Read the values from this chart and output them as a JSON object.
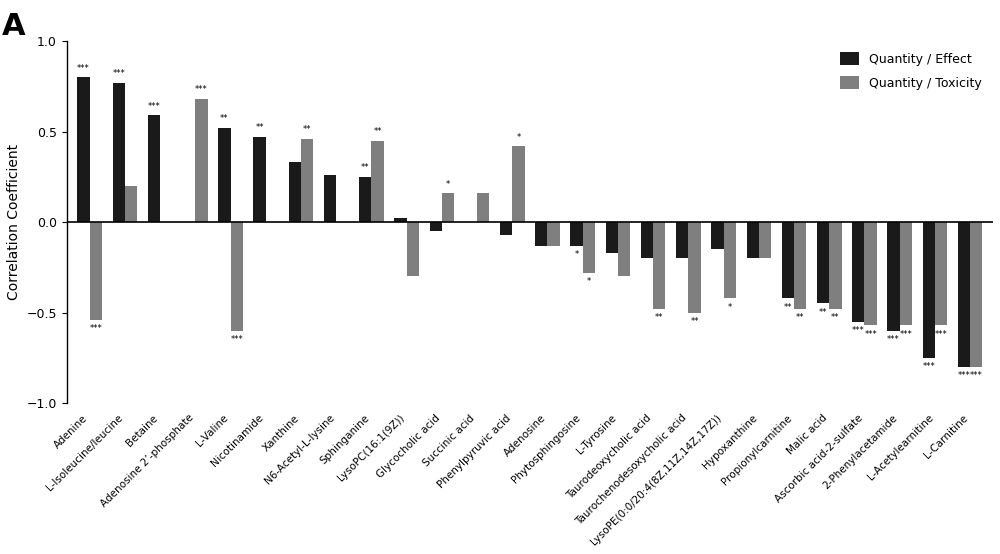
{
  "categories": [
    "Adenine",
    "L-Isoleucine/leucine",
    "Betaine",
    "Adenosine 2’-phosphate",
    "L-Valine",
    "Nicotinamide",
    "Xanthine",
    "N6-Acetyl-L-lysine",
    "Sphinganine",
    "LysoPC(16:1(9Z))",
    "Glycocholic acid",
    "Succinic acid",
    "Phenylpyruvic acid",
    "Adenosine",
    "Phytosphingosine",
    "L-Tyrosine",
    "Taurodeoxycholic acid",
    "Taurochenodesoxycholic acid",
    "LysoPE(0:0/20:4(8Z,11Z,14Z,17Z))",
    "Hypoxanthine",
    "Propionylcarnitine",
    "Malic acid",
    "Ascorbic acid-2-sulfate",
    "2-Phenylacetamide",
    "L-Acetylearnitine",
    "L-Carnitine"
  ],
  "effect_values": [
    0.8,
    0.77,
    0.59,
    0.0,
    0.52,
    0.47,
    0.33,
    0.26,
    0.25,
    0.02,
    -0.05,
    0.0,
    -0.07,
    -0.13,
    -0.13,
    -0.17,
    -0.2,
    -0.2,
    -0.15,
    -0.2,
    -0.42,
    -0.45,
    -0.55,
    -0.6,
    -0.75,
    -0.8
  ],
  "toxicity_values": [
    -0.54,
    0.2,
    0.0,
    0.68,
    -0.6,
    0.0,
    0.46,
    0.0,
    0.45,
    -0.3,
    0.16,
    0.16,
    0.42,
    -0.13,
    -0.28,
    -0.3,
    -0.48,
    -0.5,
    -0.42,
    -0.2,
    -0.48,
    -0.48,
    -0.57,
    -0.57,
    -0.57,
    -0.8
  ],
  "effect_stars": [
    "***",
    "***",
    "***",
    "",
    "**",
    "**",
    "",
    "",
    "**",
    "",
    "",
    "",
    "",
    "",
    "*",
    "",
    "",
    "",
    "",
    "",
    "**",
    "**",
    "***",
    "***",
    "***",
    "***"
  ],
  "toxicity_stars": [
    "***",
    "",
    "",
    "***",
    "***",
    "",
    "**",
    "",
    "**",
    "",
    "*",
    "",
    "*",
    "",
    "*",
    "",
    "**",
    "**",
    "*",
    "",
    "**",
    "**",
    "***",
    "***",
    "***",
    "***"
  ],
  "effect_color": "#1a1a1a",
  "toxicity_color": "#7f7f7f",
  "bar_width": 0.35,
  "ylim": [
    -1.0,
    1.0
  ],
  "yticks": [
    -1.0,
    -0.5,
    0.0,
    0.5,
    1.0
  ],
  "ylabel": "Correlation Coefficient",
  "legend_effect": "Quantity / Effect",
  "legend_toxicity": "Quantity / Toxicity",
  "panel_label": "A"
}
